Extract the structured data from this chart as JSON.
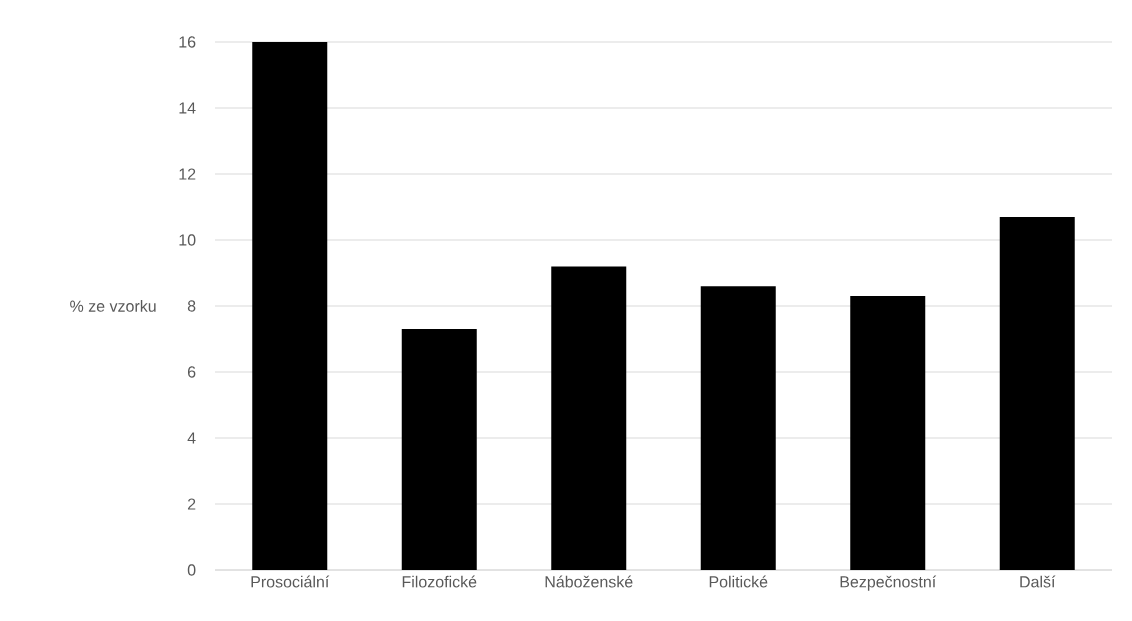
{
  "chart_data": {
    "type": "bar",
    "ylabel": "% ze vzorku",
    "categories": [
      "Prosociální",
      "Filozofické",
      "Náboženské",
      "Politické",
      "Bezpečnostní",
      "Další"
    ],
    "values": [
      16,
      7.3,
      9.2,
      8.6,
      8.3,
      10.7
    ],
    "color": "#000000",
    "ylim": [
      0,
      16
    ],
    "yticks": [
      0,
      2,
      4,
      6,
      8,
      10,
      12,
      14,
      16
    ],
    "grid": "y"
  }
}
